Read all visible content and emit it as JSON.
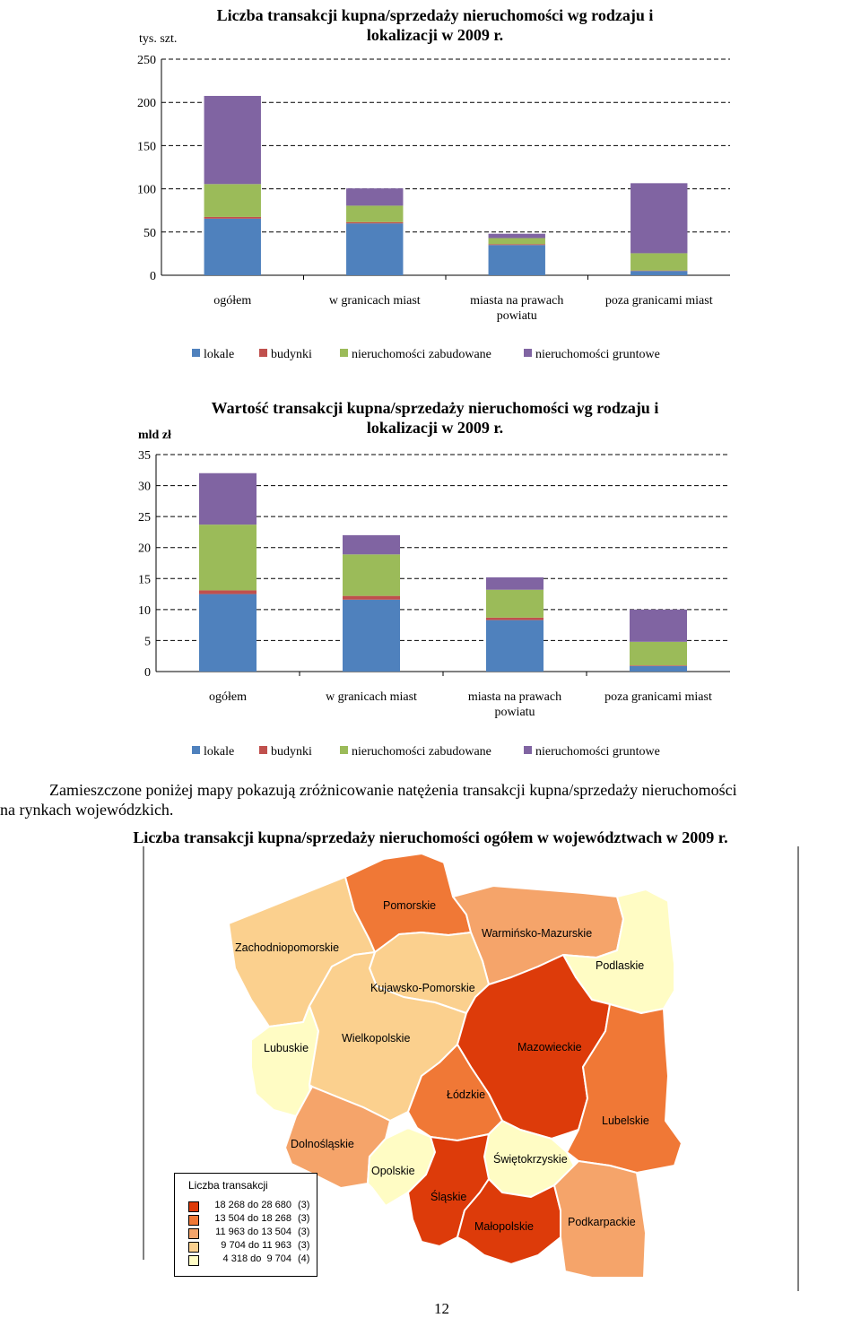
{
  "chart_data": [
    {
      "type": "bar",
      "stacked": true,
      "title": "Liczba transakcji kupna/sprzedaży nieruchomości wg rodzaju i lokalizacji w 2009 r.",
      "ylabel": "tys. szt.",
      "ylim": [
        0,
        250
      ],
      "yticks": [
        0,
        50,
        100,
        150,
        200,
        250
      ],
      "grid": true,
      "legend_position": "bottom",
      "categories": [
        [
          "ogółem"
        ],
        [
          "w granicach miast"
        ],
        [
          "miasta na prawach",
          "powiatu"
        ],
        [
          "poza granicami miast"
        ]
      ],
      "series": [
        {
          "name": "lokale",
          "color": "#4f81bd",
          "values": [
            65.5,
            60,
            35,
            5
          ]
        },
        {
          "name": "budynki",
          "color": "#c0504d",
          "values": [
            2,
            1.5,
            1,
            0.5
          ]
        },
        {
          "name": "nieruchomości zabudowane",
          "color": "#9bbb59",
          "values": [
            38,
            19,
            7,
            20
          ]
        },
        {
          "name": "nieruchomości gruntowe",
          "color": "#8064a2",
          "values": [
            102,
            20,
            5,
            81
          ]
        }
      ]
    },
    {
      "type": "bar",
      "stacked": true,
      "title": "Wartość transakcji kupna/sprzedaży nieruchomości wg rodzaju i lokalizacji w 2009 r.",
      "ylabel": "mld zł",
      "ylim": [
        0,
        35
      ],
      "yticks": [
        0,
        5,
        10,
        15,
        20,
        25,
        30,
        35
      ],
      "grid": true,
      "legend_position": "bottom",
      "categories": [
        [
          "ogółem"
        ],
        [
          "w granicach miast"
        ],
        [
          "miasta na prawach",
          "powiatu"
        ],
        [
          "poza granicami miast"
        ]
      ],
      "series": [
        {
          "name": "lokale",
          "color": "#4f81bd",
          "values": [
            12.5,
            11.6,
            8.3,
            0.9
          ]
        },
        {
          "name": "budynki",
          "color": "#c0504d",
          "values": [
            0.6,
            0.6,
            0.4,
            0.1
          ]
        },
        {
          "name": "nieruchomości zabudowane",
          "color": "#9bbb59",
          "values": [
            10.6,
            6.7,
            4.5,
            3.8
          ]
        },
        {
          "name": "nieruchomości gruntowe",
          "color": "#8064a2",
          "values": [
            8.3,
            3.1,
            2.0,
            5.2
          ]
        }
      ]
    }
  ],
  "paragraph": {
    "line1": "Zamieszczone poniżej mapy pokazują zróżnicowanie natężenia transakcji kupna/sprzedaży nieruchomości",
    "line2": "na rynkach wojewódzkich."
  },
  "map": {
    "title": "Liczba transakcji kupna/sprzedaży nieruchomości ogółem w województwach w 2009 r.",
    "regions": [
      {
        "name": "Pomorskie",
        "class": 1
      },
      {
        "name": "Zachodniopomorskie",
        "class": 3
      },
      {
        "name": "Warmińsko-Mazurskie",
        "class": 2
      },
      {
        "name": "Podlaskie",
        "class": 4
      },
      {
        "name": "Kujawsko-Pomorskie",
        "class": 3
      },
      {
        "name": "Lubuskie",
        "class": 4
      },
      {
        "name": "Wielkopolskie",
        "class": 3
      },
      {
        "name": "Mazowieckie",
        "class": 0
      },
      {
        "name": "Łódzkie",
        "class": 1
      },
      {
        "name": "Lubelskie",
        "class": 1
      },
      {
        "name": "Dolnośląskie",
        "class": 2
      },
      {
        "name": "Opolskie",
        "class": 4
      },
      {
        "name": "Świętokrzyskie",
        "class": 4
      },
      {
        "name": "Śląskie",
        "class": 0
      },
      {
        "name": "Małopolskie",
        "class": 0
      },
      {
        "name": "Podkarpackie",
        "class": 2
      }
    ],
    "legend": {
      "title": "Liczba transakcji",
      "items": [
        {
          "range": "18 268 do 28 680",
          "count": "(3)",
          "color": "#dd3b0a"
        },
        {
          "range": "13 504 do 18 268",
          "count": "(3)",
          "color": "#f07836"
        },
        {
          "range": "11 963 do 13 504",
          "count": "(3)",
          "color": "#f5a46a"
        },
        {
          "range": "9 704 do 11 963",
          "count": "(3)",
          "color": "#fbd08e"
        },
        {
          "range": "4 318 do  9 704",
          "count": "(4)",
          "color": "#fffcc4"
        }
      ]
    }
  },
  "page_number": "12"
}
